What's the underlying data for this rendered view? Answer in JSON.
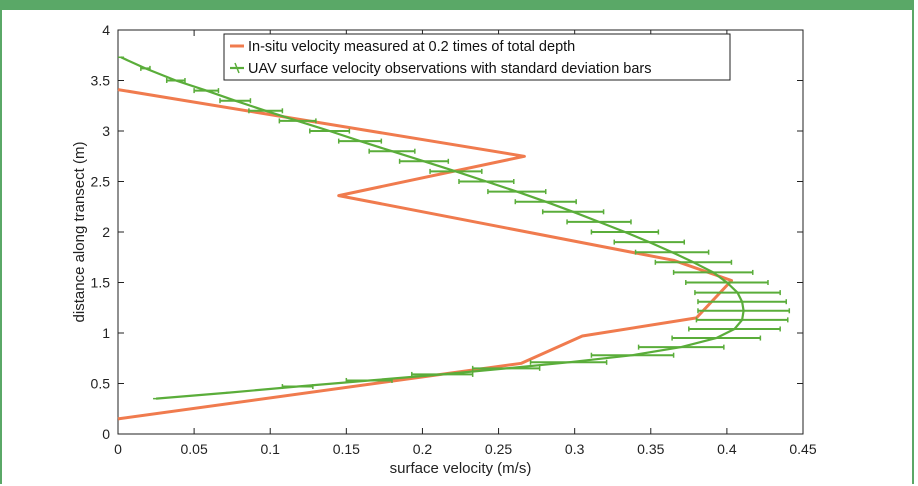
{
  "chart_data": {
    "type": "line",
    "title": "",
    "xlabel": "surface velocity (m/s)",
    "ylabel": "distance along transect (m)",
    "xlim": [
      0,
      0.45
    ],
    "ylim": [
      0,
      4
    ],
    "xticks": [
      0,
      0.05,
      0.1,
      0.15,
      0.2,
      0.25,
      0.3,
      0.35,
      0.4,
      0.45
    ],
    "xtick_labels": [
      "0",
      "0.05",
      "0.1",
      "0.15",
      "0.2",
      "0.25",
      "0.3",
      "0.35",
      "0.4",
      "0.45"
    ],
    "yticks": [
      0,
      0.5,
      1,
      1.5,
      2,
      2.5,
      3,
      3.5,
      4
    ],
    "ytick_labels": [
      "0",
      "0.5",
      "1",
      "1.5",
      "2",
      "2.5",
      "3",
      "3.5",
      "4"
    ],
    "grid": false,
    "legend": "top-right",
    "series": [
      {
        "name": "In-situ velocity measured at 0.2 times of total depth",
        "color": "#f07b4e",
        "points": [
          [
            0,
            0.15
          ],
          [
            0.265,
            0.7
          ],
          [
            0.305,
            0.97
          ],
          [
            0.38,
            1.15
          ],
          [
            0.403,
            1.52
          ],
          [
            0.365,
            1.72
          ],
          [
            0.145,
            2.36
          ],
          [
            0.267,
            2.75
          ],
          [
            0,
            3.41
          ]
        ]
      },
      {
        "name": "UAV surface velocity observations with standard deviation bars",
        "color": "#5aad3a",
        "points": [
          [
            0.025,
            0.35
          ],
          [
            0.073,
            0.41
          ],
          [
            0.118,
            0.47
          ],
          [
            0.165,
            0.53
          ],
          [
            0.213,
            0.59
          ],
          [
            0.255,
            0.65
          ],
          [
            0.296,
            0.71
          ],
          [
            0.338,
            0.78
          ],
          [
            0.37,
            0.86
          ],
          [
            0.393,
            0.95
          ],
          [
            0.405,
            1.04
          ],
          [
            0.41,
            1.13
          ],
          [
            0.411,
            1.22
          ],
          [
            0.41,
            1.31
          ],
          [
            0.407,
            1.4
          ],
          [
            0.4,
            1.5
          ],
          [
            0.391,
            1.6
          ],
          [
            0.378,
            1.7
          ],
          [
            0.364,
            1.8
          ],
          [
            0.349,
            1.9
          ],
          [
            0.333,
            2.0
          ],
          [
            0.316,
            2.1
          ],
          [
            0.299,
            2.2
          ],
          [
            0.281,
            2.3
          ],
          [
            0.262,
            2.4
          ],
          [
            0.242,
            2.5
          ],
          [
            0.222,
            2.6
          ],
          [
            0.201,
            2.7
          ],
          [
            0.18,
            2.8
          ],
          [
            0.159,
            2.9
          ],
          [
            0.139,
            3.0
          ],
          [
            0.118,
            3.1
          ],
          [
            0.097,
            3.2
          ],
          [
            0.077,
            3.3
          ],
          [
            0.058,
            3.4
          ],
          [
            0.038,
            3.5
          ],
          [
            0.018,
            3.62
          ],
          [
            0.002,
            3.73
          ]
        ],
        "error_x": [
          0.0,
          0.0,
          0.01,
          0.015,
          0.02,
          0.022,
          0.025,
          0.027,
          0.028,
          0.029,
          0.03,
          0.03,
          0.03,
          0.029,
          0.028,
          0.027,
          0.026,
          0.025,
          0.024,
          0.023,
          0.022,
          0.021,
          0.02,
          0.02,
          0.019,
          0.018,
          0.017,
          0.016,
          0.015,
          0.014,
          0.013,
          0.012,
          0.011,
          0.01,
          0.008,
          0.006,
          0.003,
          0.0
        ]
      }
    ]
  },
  "colors": {
    "frame": "#5aa867",
    "insitu": "#f07b4e",
    "uav": "#5aad3a",
    "axis": "#222222"
  }
}
